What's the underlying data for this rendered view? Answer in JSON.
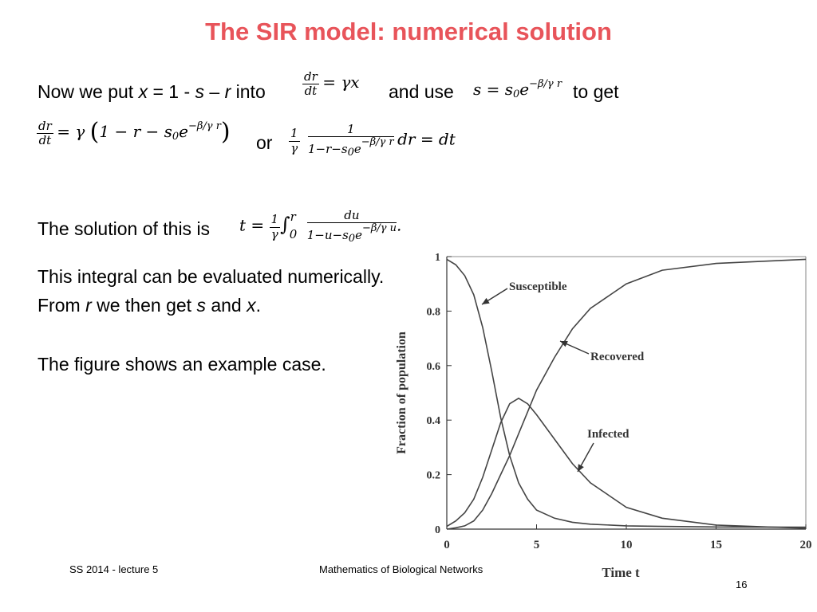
{
  "slide": {
    "title": "The SIR model: numerical solution",
    "line1": {
      "prefix": "Now we put ",
      "var_x": "x",
      "eq_part": " = 1 - ",
      "var_s": "s",
      "dash": " – ",
      "var_r": "r",
      "into": " into",
      "and_use": "and use",
      "to_get": "to get"
    },
    "line2": {
      "or": "or"
    },
    "solution_text": "The solution of this is",
    "integral_text": "This integral can be evaluated numerically.",
    "from_r": {
      "pre": "From ",
      "r": "r",
      "mid": " we then get ",
      "s": "s",
      "and": " and ",
      "x": "x",
      "end": "."
    },
    "figure_text": "The figure shows an example case.",
    "footer_left": "SS 2014 - lecture 5",
    "footer_center": "Mathematics of Biological Networks",
    "page_number": "16"
  },
  "chart_data": {
    "type": "line",
    "xlabel": "Time t",
    "ylabel": "Fraction of population",
    "xlim": [
      0,
      20
    ],
    "ylim": [
      0,
      1
    ],
    "x_ticks": [
      "0",
      "5",
      "10",
      "15",
      "20"
    ],
    "y_ticks": [
      "0",
      "0.2",
      "0.4",
      "0.6",
      "0.8",
      "1"
    ],
    "series": [
      {
        "name": "Susceptible",
        "x": [
          0,
          0.5,
          1,
          1.5,
          2,
          2.5,
          3,
          3.5,
          4,
          4.5,
          5,
          6,
          7,
          8,
          10,
          12,
          15,
          20
        ],
        "y": [
          0.99,
          0.97,
          0.93,
          0.86,
          0.74,
          0.58,
          0.41,
          0.27,
          0.17,
          0.11,
          0.07,
          0.04,
          0.025,
          0.018,
          0.012,
          0.01,
          0.008,
          0.007
        ]
      },
      {
        "name": "Infected",
        "x": [
          0,
          0.5,
          1,
          1.5,
          2,
          2.5,
          3,
          3.5,
          4,
          4.5,
          5,
          6,
          7,
          8,
          10,
          12,
          15,
          20
        ],
        "y": [
          0.01,
          0.03,
          0.06,
          0.11,
          0.19,
          0.29,
          0.39,
          0.46,
          0.48,
          0.46,
          0.42,
          0.33,
          0.24,
          0.17,
          0.08,
          0.04,
          0.015,
          0.003
        ]
      },
      {
        "name": "Recovered",
        "x": [
          0,
          0.5,
          1,
          1.5,
          2,
          2.5,
          3,
          3.5,
          4,
          4.5,
          5,
          6,
          7,
          8,
          10,
          12,
          15,
          20
        ],
        "y": [
          0.0,
          0.005,
          0.012,
          0.03,
          0.07,
          0.13,
          0.2,
          0.27,
          0.35,
          0.43,
          0.51,
          0.63,
          0.735,
          0.81,
          0.9,
          0.95,
          0.975,
          0.99
        ]
      }
    ]
  }
}
